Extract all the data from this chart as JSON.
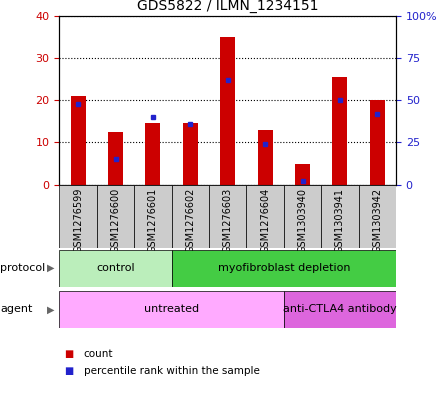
{
  "title": "GDS5822 / ILMN_1234151",
  "samples": [
    "GSM1276599",
    "GSM1276600",
    "GSM1276601",
    "GSM1276602",
    "GSM1276603",
    "GSM1276604",
    "GSM1303940",
    "GSM1303941",
    "GSM1303942"
  ],
  "counts": [
    21,
    12.5,
    14.5,
    14.5,
    35,
    13,
    5,
    25.5,
    20
  ],
  "percentiles": [
    47.5,
    15,
    40,
    36,
    62,
    24,
    2,
    50,
    42
  ],
  "ylim_left": [
    0,
    40
  ],
  "ylim_right": [
    0,
    100
  ],
  "yticks_left": [
    0,
    10,
    20,
    30,
    40
  ],
  "yticks_right": [
    0,
    25,
    50,
    75,
    100
  ],
  "yticklabels_right": [
    "0",
    "25",
    "50",
    "75",
    "100%"
  ],
  "bar_color": "#cc0000",
  "blue_color": "#2222cc",
  "protocol_groups": [
    {
      "label": "control",
      "start": 0,
      "end": 3,
      "color": "#bbeebb"
    },
    {
      "label": "myofibroblast depletion",
      "start": 3,
      "end": 9,
      "color": "#44cc44"
    }
  ],
  "agent_groups": [
    {
      "label": "untreated",
      "start": 0,
      "end": 6,
      "color": "#ffaaff"
    },
    {
      "label": "anti-CTLA4 antibody",
      "start": 6,
      "end": 9,
      "color": "#dd66dd"
    }
  ],
  "legend_count_color": "#cc0000",
  "legend_percentile_color": "#2222cc",
  "axis_color_left": "#cc0000",
  "axis_color_right": "#2222cc",
  "background_color": "#ffffff",
  "tick_bg_color": "#cccccc",
  "bar_width": 0.4
}
